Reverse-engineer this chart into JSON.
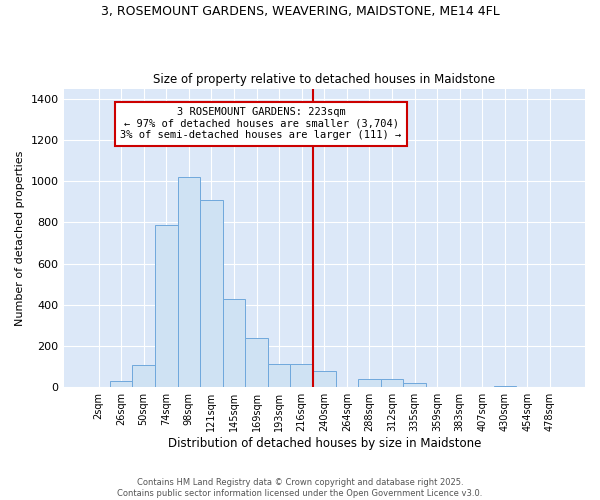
{
  "title": "3, ROSEMOUNT GARDENS, WEAVERING, MAIDSTONE, ME14 4FL",
  "subtitle": "Size of property relative to detached houses in Maidstone",
  "xlabel": "Distribution of detached houses by size in Maidstone",
  "ylabel": "Number of detached properties",
  "bin_labels": [
    "2sqm",
    "26sqm",
    "50sqm",
    "74sqm",
    "98sqm",
    "121sqm",
    "145sqm",
    "169sqm",
    "193sqm",
    "216sqm",
    "240sqm",
    "264sqm",
    "288sqm",
    "312sqm",
    "335sqm",
    "359sqm",
    "383sqm",
    "407sqm",
    "430sqm",
    "454sqm",
    "478sqm"
  ],
  "bar_heights": [
    0,
    30,
    110,
    790,
    1020,
    910,
    430,
    240,
    115,
    115,
    80,
    0,
    40,
    40,
    20,
    0,
    0,
    0,
    5,
    0,
    0
  ],
  "bar_color_face": "#cfe2f3",
  "bar_color_edge": "#6fa8dc",
  "vline_x": 9.5,
  "vline_color": "#cc0000",
  "annotation_text": "3 ROSEMOUNT GARDENS: 223sqm\n← 97% of detached houses are smaller (3,704)\n3% of semi-detached houses are larger (111) →",
  "annotation_box_color": "#cc0000",
  "background_color": "#dce8f8",
  "footnote": "Contains HM Land Registry data © Crown copyright and database right 2025.\nContains public sector information licensed under the Open Government Licence v3.0.",
  "ylim": [
    0,
    1450
  ],
  "yticks": [
    0,
    200,
    400,
    600,
    800,
    1000,
    1200,
    1400
  ]
}
